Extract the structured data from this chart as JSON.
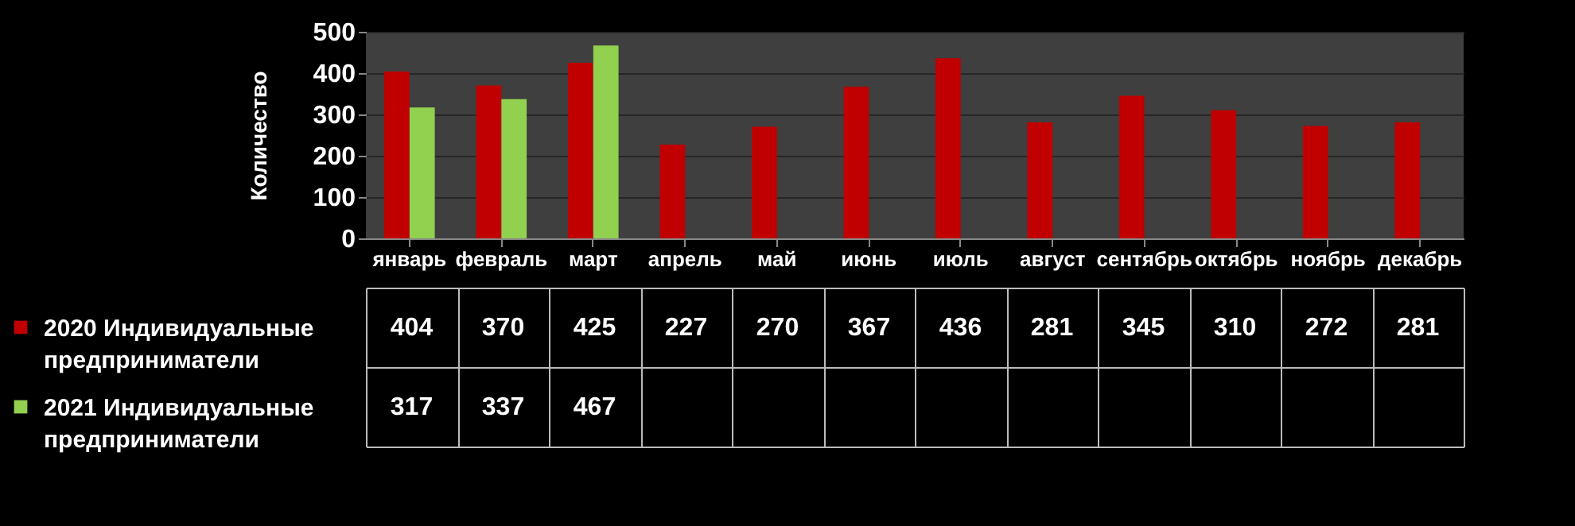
{
  "chart_data": {
    "type": "bar",
    "ylabel": "Количество",
    "categories": [
      "январь",
      "февраль",
      "март",
      "апрель",
      "май",
      "июнь",
      "июль",
      "август",
      "сентябрь",
      "октябрь",
      "ноябрь",
      "декабрь"
    ],
    "series": [
      {
        "name": "2020 Индивидуальные предприниматели",
        "color": "#c00000",
        "values": [
          404,
          370,
          425,
          227,
          270,
          367,
          436,
          281,
          345,
          310,
          272,
          281
        ]
      },
      {
        "name": "2021 Индивидуальные предприниматели",
        "color": "#92d050",
        "values": [
          317,
          337,
          467,
          null,
          null,
          null,
          null,
          null,
          null,
          null,
          null,
          null
        ]
      }
    ],
    "ylim": [
      0,
      500
    ],
    "yticks": [
      0,
      100,
      200,
      300,
      400,
      500
    ],
    "grid": "y",
    "legend": "bottom",
    "data_labels": true
  }
}
